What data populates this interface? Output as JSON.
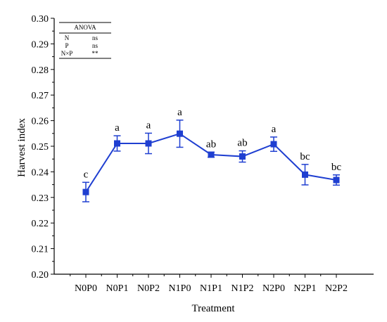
{
  "chart_data": {
    "type": "line",
    "xlabel": "Treatment",
    "ylabel": "Harvest index",
    "ylim": [
      0.2,
      0.3
    ],
    "yticks": [
      "0.20",
      "0.21",
      "0.22",
      "0.23",
      "0.24",
      "0.25",
      "0.26",
      "0.27",
      "0.28",
      "0.29",
      "0.30"
    ],
    "categories": [
      "N0P0",
      "N0P1",
      "N0P2",
      "N1P0",
      "N1P1",
      "N1P2",
      "N2P0",
      "N2P1",
      "N2P2"
    ],
    "series": [
      {
        "values": [
          0.2321,
          0.2511,
          0.2511,
          0.2549,
          0.2467,
          0.246,
          0.2508,
          0.2389,
          0.2368
        ],
        "errors": [
          0.0038,
          0.003,
          0.004,
          0.0053,
          0.001,
          0.0022,
          0.0028,
          0.004,
          0.002
        ],
        "labels": [
          "c",
          "a",
          "a",
          "a",
          "ab",
          "ab",
          "a",
          "bc",
          "bc"
        ],
        "color": "#1f3fd1"
      }
    ],
    "anova": {
      "title": "ANOVA",
      "rows": [
        {
          "factor": "N",
          "value": "ns"
        },
        {
          "factor": "P",
          "value": "ns"
        },
        {
          "factor": "N×P",
          "value": "**"
        }
      ]
    },
    "grid": false,
    "legend": "none"
  }
}
